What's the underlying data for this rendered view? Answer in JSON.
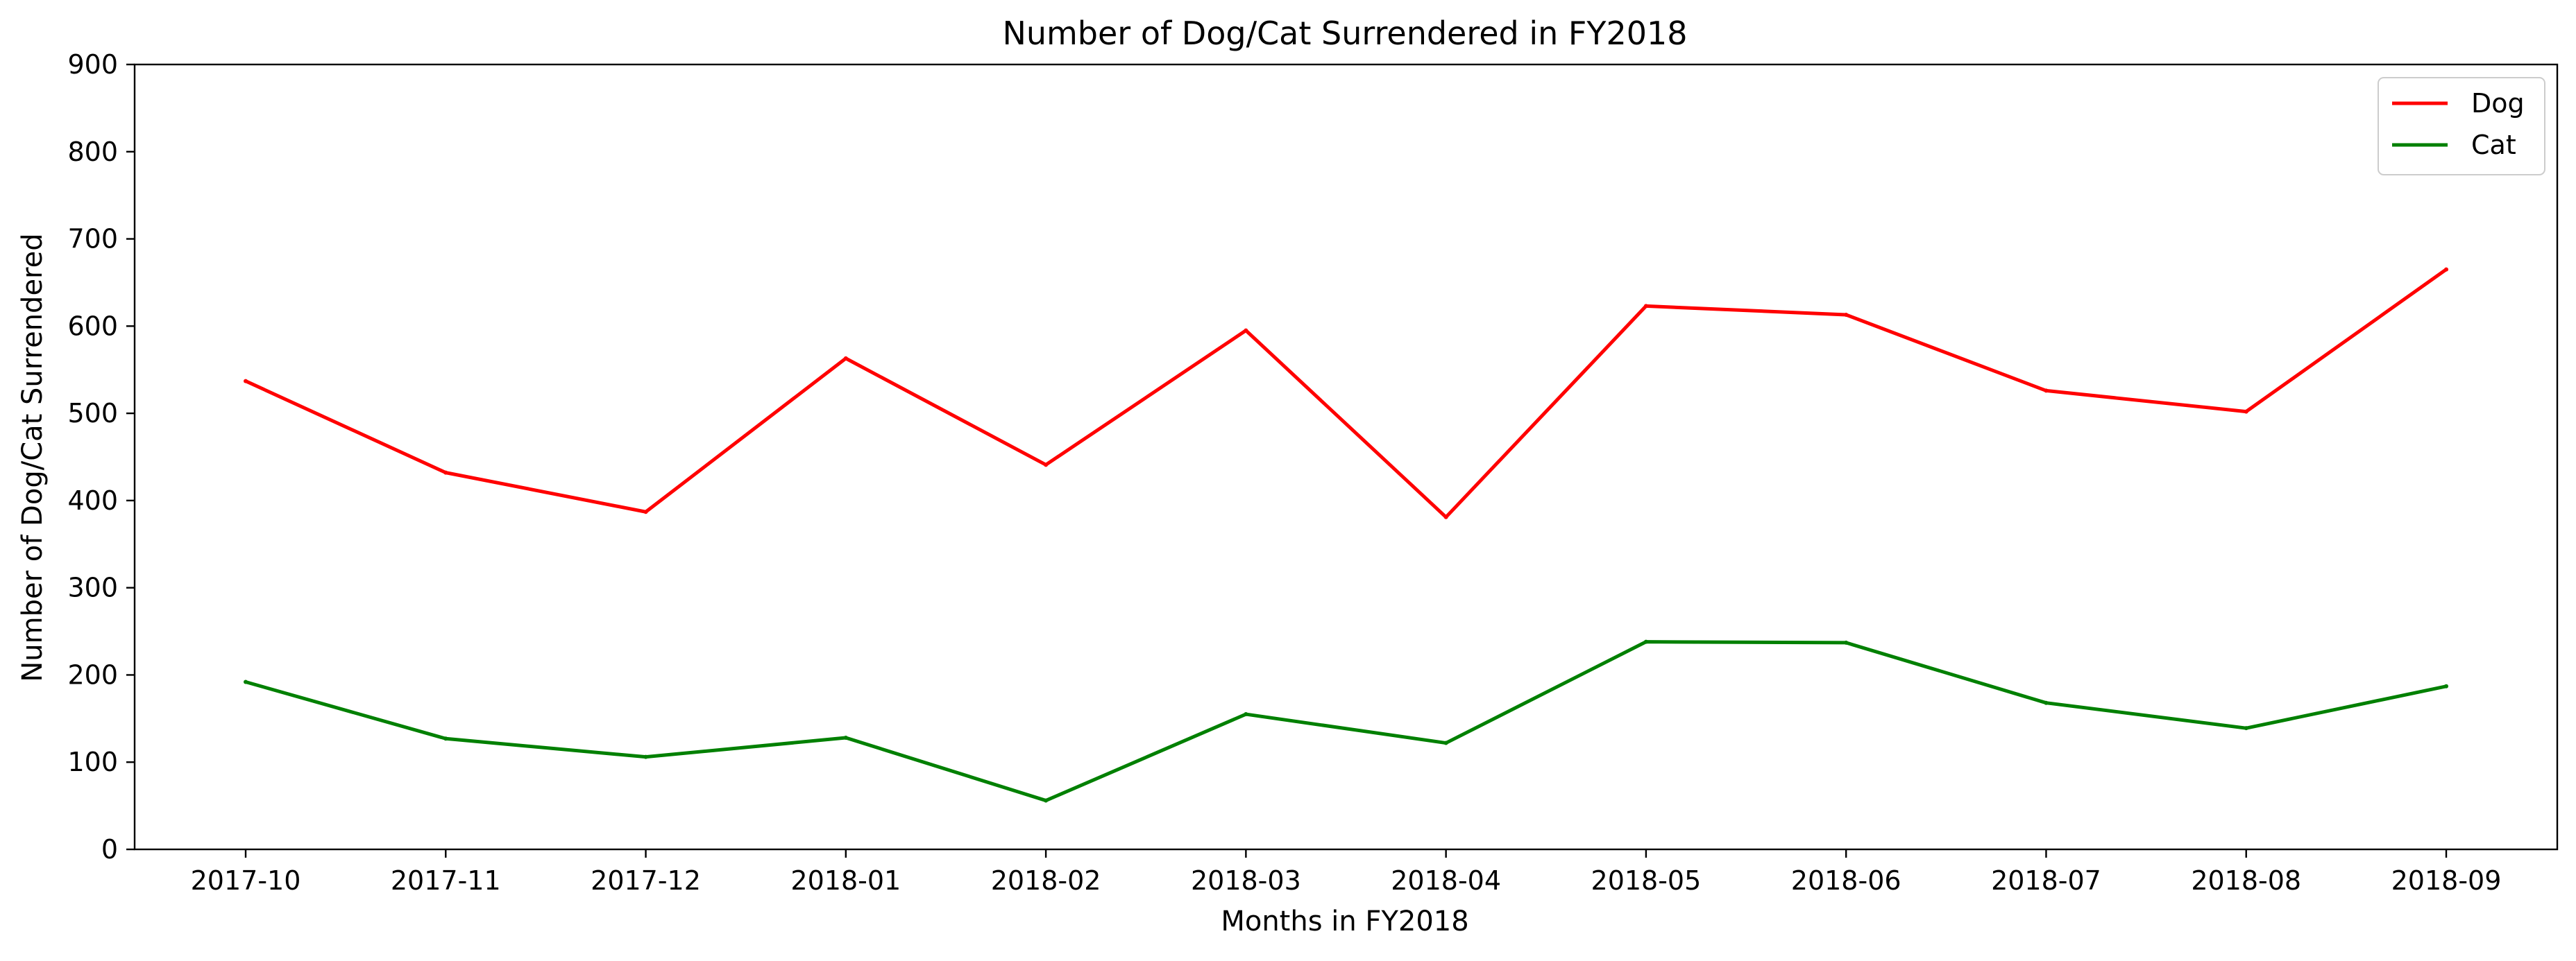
{
  "chart_data": {
    "type": "line",
    "title": "Number of Dog/Cat Surrendered in FY2018",
    "xlabel": "Months in FY2018",
    "ylabel": "Number of Dog/Cat Surrendered",
    "categories": [
      "2017-10",
      "2017-11",
      "2017-12",
      "2018-01",
      "2018-02",
      "2018-03",
      "2018-04",
      "2018-05",
      "2018-06",
      "2018-07",
      "2018-08",
      "2018-09"
    ],
    "ylim": [
      0,
      900
    ],
    "yticks": [
      0,
      100,
      200,
      300,
      400,
      500,
      600,
      700,
      800,
      900
    ],
    "grid": false,
    "legend_position": "top-right",
    "series": [
      {
        "name": "Dog",
        "color": "#ff0000",
        "values": [
          537,
          432,
          387,
          563,
          441,
          595,
          381,
          623,
          613,
          526,
          502,
          665
        ]
      },
      {
        "name": "Cat",
        "color": "#008000",
        "values": [
          192,
          127,
          106,
          128,
          56,
          155,
          122,
          238,
          237,
          168,
          139,
          187
        ]
      }
    ]
  }
}
